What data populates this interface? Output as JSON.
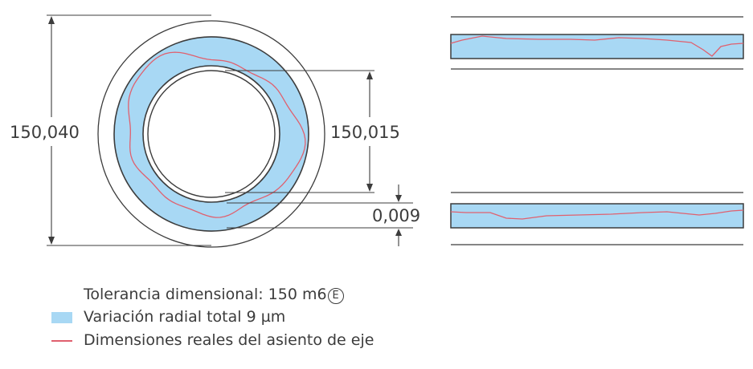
{
  "dimensions": {
    "outer_diameter": "150,040",
    "inner_diameter": "150,015",
    "radial_variation": "0,009"
  },
  "legend": {
    "tolerance_text": "Tolerancia dimensional: 150 m6",
    "tolerance_mark": "E",
    "blue_label": "Variación radial total 9 µm",
    "red_label": "Dimensiones reales del asiento de eje"
  },
  "colors": {
    "tolerance_band": "#a8d8f4",
    "actual_profile": "#e0606e",
    "outline": "#3c3c3c"
  }
}
